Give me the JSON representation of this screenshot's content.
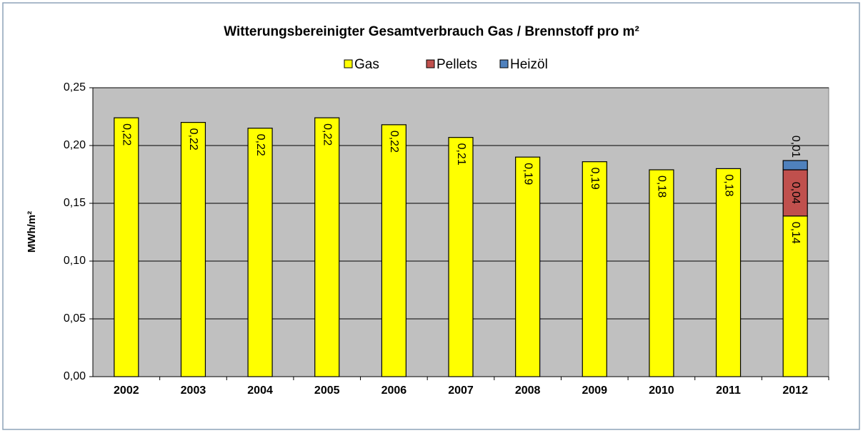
{
  "chart_data": {
    "type": "stacked-bar",
    "title": "Witterungsbereinigter Gesamtverbrauch Gas / Brennstoff pro m²",
    "y_label": "MWh/m²",
    "categories": [
      "2002",
      "2003",
      "2004",
      "2005",
      "2006",
      "2007",
      "2008",
      "2009",
      "2010",
      "2011",
      "2012"
    ],
    "series": [
      {
        "name": "Gas",
        "color": "#ffff00",
        "values": [
          0.224,
          0.22,
          0.215,
          0.224,
          0.218,
          0.207,
          0.19,
          0.186,
          0.179,
          0.18,
          0.139
        ],
        "value_labels": [
          "0,22",
          "0,22",
          "0,22",
          "0,22",
          "0,22",
          "0,21",
          "0,19",
          "0,19",
          "0,18",
          "0,18",
          "0,14"
        ]
      },
      {
        "name": "Pellets",
        "color": "#c0504d",
        "values": [
          null,
          null,
          null,
          null,
          null,
          null,
          null,
          null,
          null,
          null,
          0.04
        ],
        "value_labels": [
          null,
          null,
          null,
          null,
          null,
          null,
          null,
          null,
          null,
          null,
          "0,04"
        ]
      },
      {
        "name": "Heizöl",
        "color": "#4f81bd",
        "values": [
          null,
          null,
          null,
          null,
          null,
          null,
          null,
          null,
          null,
          null,
          0.008
        ],
        "value_labels": [
          null,
          null,
          null,
          null,
          null,
          null,
          null,
          null,
          null,
          null,
          "0,01"
        ]
      }
    ],
    "ylim": [
      0,
      0.25
    ],
    "yticks": [
      {
        "value": 0,
        "label": "0,00"
      },
      {
        "value": 0.05,
        "label": "0,05"
      },
      {
        "value": 0.1,
        "label": "0,10"
      },
      {
        "value": 0.15,
        "label": "0,15"
      },
      {
        "value": 0.2,
        "label": "0,20"
      },
      {
        "value": 0.25,
        "label": "0,25"
      }
    ],
    "grid": true,
    "plot_background": "#c0c0c0",
    "legend": "top"
  }
}
